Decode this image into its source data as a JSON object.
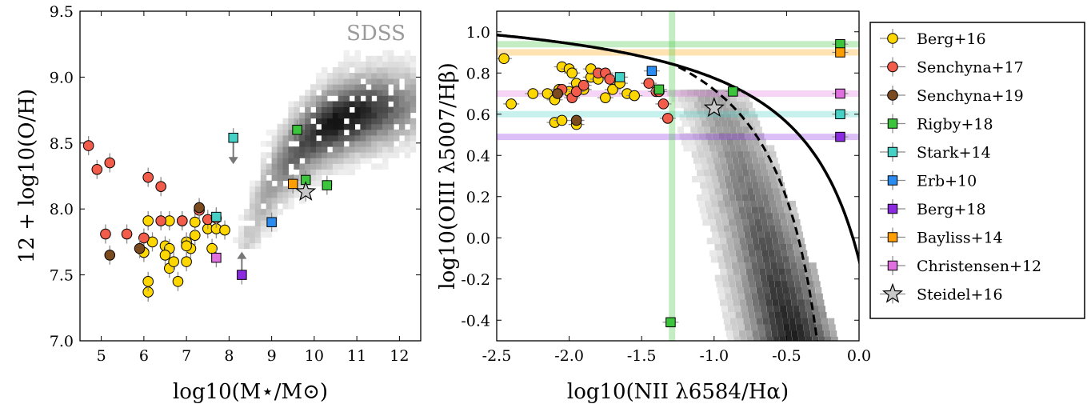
{
  "chart_data": [
    {
      "type": "scatter",
      "panel": "left",
      "xlabel": "log10(M⋆/M⊙)",
      "ylabel": "12 + log10(O/H)",
      "xlim": [
        4.5,
        12.5
      ],
      "ylim": [
        7.0,
        9.5
      ],
      "xticks": [
        "5",
        "6",
        "7",
        "8",
        "9",
        "10",
        "11",
        "12"
      ],
      "yticks": [
        "7.0",
        "7.5",
        "8.0",
        "8.5",
        "9.0",
        "9.5"
      ],
      "annotation": "SDSS",
      "background": "SDSS grayscale density",
      "series": [
        {
          "name": "Berg+16",
          "color": "#ffd700",
          "marker": "circle",
          "points": [
            [
              6.1,
              7.37
            ],
            [
              6.1,
              7.45
            ],
            [
              6.0,
              7.67
            ],
            [
              6.2,
              7.75
            ],
            [
              6.5,
              7.72
            ],
            [
              6.6,
              7.7
            ],
            [
              6.5,
              7.65
            ],
            [
              6.6,
              7.55
            ],
            [
              6.7,
              7.6
            ],
            [
              6.8,
              7.45
            ],
            [
              7.0,
              7.6
            ],
            [
              7.1,
              7.7
            ],
            [
              7.2,
              7.8
            ],
            [
              7.0,
              7.75
            ],
            [
              6.9,
              7.91
            ],
            [
              6.6,
              7.91
            ],
            [
              6.1,
              7.91
            ],
            [
              7.2,
              7.9
            ],
            [
              7.5,
              7.85
            ],
            [
              7.6,
              7.7
            ],
            [
              7.7,
              7.85
            ],
            [
              7.9,
              7.84
            ],
            [
              7.0,
              7.72
            ]
          ]
        },
        {
          "name": "Senchyna+17",
          "color": "#f25c4b",
          "marker": "circle",
          "points": [
            [
              4.7,
              8.48
            ],
            [
              4.9,
              8.3
            ],
            [
              5.2,
              8.35
            ],
            [
              6.1,
              8.24
            ],
            [
              6.4,
              8.17
            ],
            [
              5.1,
              7.81
            ],
            [
              5.6,
              7.81
            ],
            [
              6.0,
              7.78
            ],
            [
              6.4,
              7.91
            ],
            [
              6.9,
              7.91
            ],
            [
              7.5,
              7.92
            ],
            [
              7.7,
              7.93
            ],
            [
              7.3,
              7.99
            ]
          ]
        },
        {
          "name": "Senchyna+19",
          "color": "#7b4a1e",
          "marker": "circle",
          "points": [
            [
              5.2,
              7.65
            ],
            [
              5.9,
              7.7
            ],
            [
              7.3,
              8.01
            ]
          ]
        },
        {
          "name": "Rigby+18",
          "color": "#3cc43c",
          "marker": "square",
          "points": [
            [
              9.6,
              8.6
            ],
            [
              9.8,
              8.22
            ],
            [
              10.3,
              8.18
            ]
          ]
        },
        {
          "name": "Stark+14",
          "color": "#45d1c5",
          "marker": "square",
          "points": [
            [
              8.1,
              8.54
            ],
            [
              7.7,
              7.94
            ]
          ],
          "upper_limit": [
            true,
            false
          ]
        },
        {
          "name": "Erb+10",
          "color": "#2a8cf0",
          "marker": "square",
          "points": [
            [
              9.0,
              7.9
            ]
          ]
        },
        {
          "name": "Berg+18",
          "color": "#8a2be2",
          "marker": "square",
          "points": [
            [
              8.3,
              7.5
            ]
          ],
          "lower_limit": [
            true
          ]
        },
        {
          "name": "Bayliss+14",
          "color": "#ff9e00",
          "marker": "square",
          "points": [
            [
              9.5,
              8.19
            ]
          ]
        },
        {
          "name": "Christensen+12",
          "color": "#e070e0",
          "marker": "square",
          "points": [
            [
              7.7,
              7.63
            ]
          ],
          "lower_limit": [
            false
          ]
        },
        {
          "name": "Steidel+16",
          "color": "#c8c8c8",
          "marker": "star",
          "points": [
            [
              9.8,
              8.13
            ]
          ]
        }
      ]
    },
    {
      "type": "scatter",
      "panel": "right",
      "xlabel": "log10(NII λ6584/Hα)",
      "ylabel": "log10(OIII λ5007/Hβ)",
      "xlim": [
        -2.5,
        0.0
      ],
      "ylim": [
        -0.5,
        1.1
      ],
      "xticks": [
        "-2.5",
        "-2.0",
        "-1.5",
        "-1.0",
        "-0.5",
        "0.0"
      ],
      "yticks": [
        "-0.4",
        "-0.2",
        "0.0",
        "0.2",
        "0.4",
        "0.6",
        "0.8",
        "1.0"
      ],
      "background": "SDSS grayscale density",
      "curves": [
        {
          "label": "solid line",
          "style": "solid"
        },
        {
          "label": "dashed line",
          "style": "dashed"
        }
      ],
      "reference_lines": [
        {
          "orientation": "horizontal",
          "y": 0.94,
          "color": "#3cc43c"
        },
        {
          "orientation": "horizontal",
          "y": 0.9,
          "color": "#ff9e00"
        },
        {
          "orientation": "horizontal",
          "y": 0.7,
          "color": "#e070e0"
        },
        {
          "orientation": "horizontal",
          "y": 0.6,
          "color": "#45d1c5"
        },
        {
          "orientation": "horizontal",
          "y": 0.49,
          "color": "#8a2be2"
        },
        {
          "orientation": "vertical",
          "x": -1.29,
          "color": "#3cc43c"
        }
      ],
      "series": [
        {
          "name": "Berg+16",
          "color": "#ffd700",
          "marker": "circle",
          "points": [
            [
              -2.45,
              0.87
            ],
            [
              -2.4,
              0.65
            ],
            [
              -2.25,
              0.7
            ],
            [
              -2.15,
              0.7
            ],
            [
              -2.1,
              0.67
            ],
            [
              -2.07,
              0.72
            ],
            [
              -2.05,
              0.83
            ],
            [
              -2.0,
              0.82
            ],
            [
              -1.98,
              0.8
            ],
            [
              -1.95,
              0.75
            ],
            [
              -1.9,
              0.72
            ],
            [
              -1.85,
              0.78
            ],
            [
              -1.8,
              0.77
            ],
            [
              -1.75,
              0.68
            ],
            [
              -1.7,
              0.72
            ],
            [
              -1.65,
              0.75
            ],
            [
              -1.6,
              0.7
            ],
            [
              -1.55,
              0.69
            ],
            [
              -2.1,
              0.56
            ],
            [
              -2.05,
              0.57
            ],
            [
              -1.95,
              0.55
            ],
            [
              -2.0,
              0.71
            ],
            [
              -1.85,
              0.82
            ]
          ]
        },
        {
          "name": "Senchyna+17",
          "color": "#f25c4b",
          "marker": "circle",
          "points": [
            [
              -2.05,
              0.72
            ],
            [
              -1.98,
              0.68
            ],
            [
              -1.95,
              0.71
            ],
            [
              -1.9,
              0.74
            ],
            [
              -1.8,
              0.8
            ],
            [
              -1.75,
              0.8
            ],
            [
              -1.72,
              0.77
            ],
            [
              -1.45,
              0.75
            ],
            [
              -1.4,
              0.71
            ],
            [
              -1.35,
              0.65
            ],
            [
              -1.32,
              0.58
            ],
            [
              -1.38,
              0.71
            ]
          ]
        },
        {
          "name": "Senchyna+19",
          "color": "#7b4a1e",
          "marker": "circle",
          "points": [
            [
              -2.08,
              0.7
            ],
            [
              -1.95,
              0.57
            ]
          ]
        },
        {
          "name": "Rigby+18",
          "color": "#3cc43c",
          "marker": "square",
          "points": [
            [
              -1.3,
              -0.41
            ],
            [
              -1.38,
              0.72
            ],
            [
              -0.87,
              0.71
            ],
            [
              -0.13,
              0.94
            ]
          ]
        },
        {
          "name": "Stark+14",
          "color": "#45d1c5",
          "marker": "square",
          "points": [
            [
              -1.65,
              0.78
            ],
            [
              -0.13,
              0.6
            ]
          ]
        },
        {
          "name": "Erb+10",
          "color": "#2a8cf0",
          "marker": "square",
          "points": [
            [
              -1.43,
              0.81
            ]
          ]
        },
        {
          "name": "Berg+18",
          "color": "#8a2be2",
          "marker": "square",
          "points": [
            [
              -0.13,
              0.49
            ]
          ]
        },
        {
          "name": "Bayliss+14",
          "color": "#ff9e00",
          "marker": "square",
          "points": [
            [
              -0.13,
              0.9
            ]
          ]
        },
        {
          "name": "Christensen+12",
          "color": "#e070e0",
          "marker": "square",
          "points": [
            [
              -0.13,
              0.7
            ]
          ]
        },
        {
          "name": "Steidel+16",
          "color": "#c8c8c8",
          "marker": "star",
          "points": [
            [
              -1.0,
              0.63
            ]
          ]
        }
      ]
    }
  ],
  "legend": {
    "placement": "right",
    "entries": [
      {
        "label": "Berg+16",
        "color": "#ffd700",
        "marker": "circle"
      },
      {
        "label": "Senchyna+17",
        "color": "#f25c4b",
        "marker": "circle"
      },
      {
        "label": "Senchyna+19",
        "color": "#7b4a1e",
        "marker": "circle"
      },
      {
        "label": "Rigby+18",
        "color": "#3cc43c",
        "marker": "square"
      },
      {
        "label": "Stark+14",
        "color": "#45d1c5",
        "marker": "square"
      },
      {
        "label": "Erb+10",
        "color": "#2a8cf0",
        "marker": "square"
      },
      {
        "label": "Berg+18",
        "color": "#8a2be2",
        "marker": "square"
      },
      {
        "label": "Bayliss+14",
        "color": "#ff9e00",
        "marker": "square"
      },
      {
        "label": "Christensen+12",
        "color": "#e070e0",
        "marker": "square"
      },
      {
        "label": "Steidel+16",
        "color": "#c8c8c8",
        "marker": "star"
      }
    ]
  }
}
